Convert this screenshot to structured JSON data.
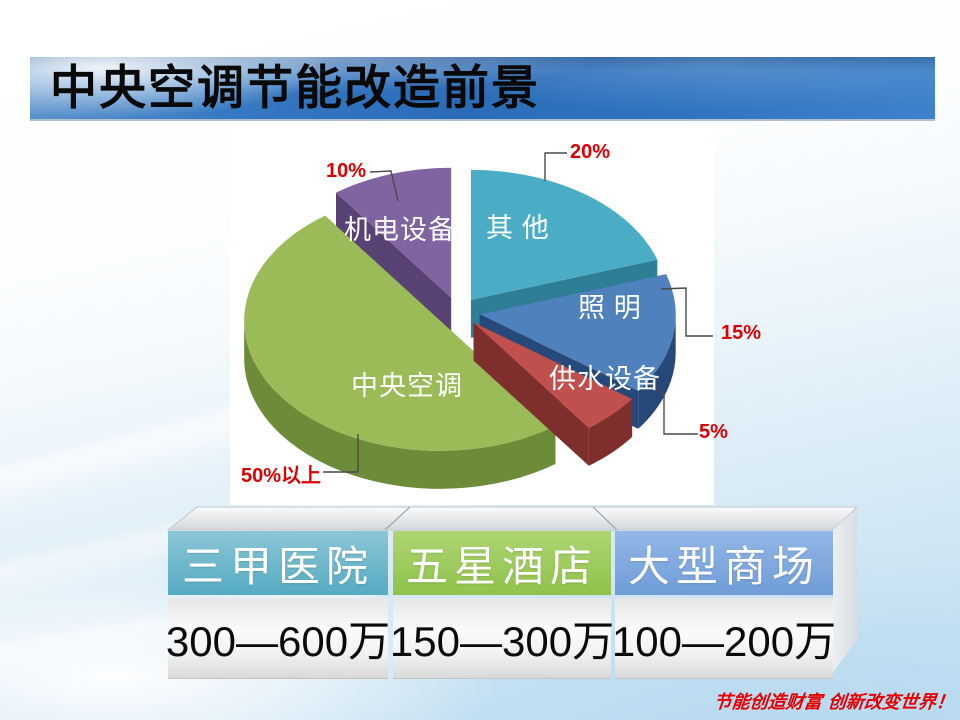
{
  "title": "中央空调节能改造前景",
  "slogan": "节能创造财富 创新改变世界！",
  "chart_data": {
    "type": "pie",
    "style": "3d-exploded",
    "start_angle_deg": 0,
    "direction": "clockwise",
    "legend_position": "none",
    "slices": [
      {
        "label": "其 他",
        "pct_label": "20%",
        "value": 20,
        "color": "#4BACC6",
        "side_color": "#2E7E95"
      },
      {
        "label": "照 明",
        "pct_label": "15%",
        "value": 15,
        "color": "#4F81BD",
        "side_color": "#27497A"
      },
      {
        "label": "供水设备",
        "pct_label": "5%",
        "value": 5,
        "color": "#C0504D",
        "side_color": "#7E2E2C"
      },
      {
        "label": "中央空调",
        "pct_label": "50%以上",
        "value": 50,
        "color": "#9BBB59",
        "side_color": "#6D8C39"
      },
      {
        "label": "机电设备",
        "pct_label": "10%",
        "value": 10,
        "color": "#8064A2",
        "side_color": "#574273"
      }
    ]
  },
  "table": {
    "columns": [
      {
        "header": "三甲医院",
        "value": "300—600万",
        "header_color_top": "#8CC6D6",
        "header_color_bottom": "#55ABC2"
      },
      {
        "header": "五星酒店",
        "value": "150—300万",
        "header_color_top": "#AED573",
        "header_color_bottom": "#8FC24B"
      },
      {
        "header": "大型商场",
        "value": "100—200万",
        "header_color_top": "#93B7E6",
        "header_color_bottom": "#6F9CD8"
      }
    ]
  }
}
